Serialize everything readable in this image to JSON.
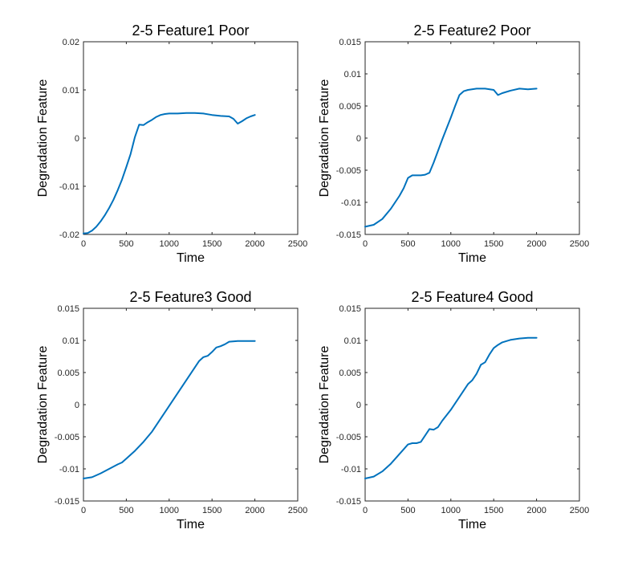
{
  "chart_data": [
    {
      "type": "line",
      "title": "2-5 Feature1 Poor",
      "xlabel": "Time",
      "ylabel": "Degradation Feature",
      "xlim": [
        0,
        2500
      ],
      "ylim": [
        -0.02,
        0.02
      ],
      "xticks": [
        0,
        500,
        1000,
        1500,
        2000,
        2500
      ],
      "yticks": [
        -0.02,
        -0.01,
        0,
        0.01,
        0.02
      ],
      "xtick_labels": [
        "0",
        "500",
        "1000",
        "1500",
        "2000",
        "2500"
      ],
      "ytick_labels": [
        "-0.02",
        "-0.01",
        "0",
        "0.01",
        "0.02"
      ],
      "grid": false,
      "color": "#0072BD",
      "series": [
        {
          "x": [
            0,
            50,
            100,
            150,
            200,
            250,
            300,
            350,
            400,
            450,
            500,
            550,
            600,
            650,
            700,
            750,
            800,
            850,
            900,
            950,
            1000,
            1100,
            1200,
            1300,
            1400,
            1500,
            1600,
            1700,
            1750,
            1800,
            1850,
            1900,
            1950,
            2000
          ],
          "y": [
            -0.0198,
            -0.0197,
            -0.0192,
            -0.0184,
            -0.0173,
            -0.016,
            -0.0145,
            -0.0128,
            -0.0108,
            -0.0086,
            -0.006,
            -0.0033,
            0.0002,
            0.0028,
            0.0027,
            0.0033,
            0.0038,
            0.0044,
            0.0048,
            0.005,
            0.0051,
            0.0051,
            0.0052,
            0.0052,
            0.0051,
            0.0048,
            0.0046,
            0.0045,
            0.004,
            0.003,
            0.0035,
            0.0041,
            0.0045,
            0.0048
          ]
        }
      ]
    },
    {
      "type": "line",
      "title": "2-5 Feature2 Poor",
      "xlabel": "Time",
      "ylabel": "Degradation Feature",
      "xlim": [
        0,
        2500
      ],
      "ylim": [
        -0.015,
        0.015
      ],
      "xticks": [
        0,
        500,
        1000,
        1500,
        2000,
        2500
      ],
      "yticks": [
        -0.015,
        -0.01,
        -0.005,
        0,
        0.005,
        0.01,
        0.015
      ],
      "xtick_labels": [
        "0",
        "500",
        "1000",
        "1500",
        "2000",
        "2500"
      ],
      "ytick_labels": [
        "-0.015",
        "-0.01",
        "-0.005",
        "0",
        "0.005",
        "0.01",
        "0.015"
      ],
      "grid": false,
      "color": "#0072BD",
      "series": [
        {
          "x": [
            0,
            100,
            200,
            300,
            400,
            450,
            500,
            550,
            600,
            650,
            700,
            750,
            800,
            850,
            900,
            950,
            1000,
            1050,
            1100,
            1150,
            1200,
            1300,
            1400,
            1500,
            1550,
            1600,
            1700,
            1800,
            1900,
            2000
          ],
          "y": [
            -0.0138,
            -0.0135,
            -0.0126,
            -0.011,
            -0.009,
            -0.0078,
            -0.0062,
            -0.0058,
            -0.0058,
            -0.0058,
            -0.0057,
            -0.0054,
            -0.0038,
            -0.002,
            -0.0002,
            0.0015,
            0.0032,
            0.005,
            0.0067,
            0.0073,
            0.0075,
            0.0077,
            0.0077,
            0.0075,
            0.0067,
            0.007,
            0.0074,
            0.0077,
            0.0076,
            0.0077
          ]
        }
      ]
    },
    {
      "type": "line",
      "title": "2-5 Feature3 Good",
      "xlabel": "Time",
      "ylabel": "Degradation Feature",
      "xlim": [
        0,
        2500
      ],
      "ylim": [
        -0.015,
        0.015
      ],
      "xticks": [
        0,
        500,
        1000,
        1500,
        2000,
        2500
      ],
      "yticks": [
        -0.015,
        -0.01,
        -0.005,
        0,
        0.005,
        0.01,
        0.015
      ],
      "xtick_labels": [
        "0",
        "500",
        "1000",
        "1500",
        "2000",
        "2500"
      ],
      "ytick_labels": [
        "-0.015",
        "-0.01",
        "-0.005",
        "0",
        "0.005",
        "0.01",
        "0.015"
      ],
      "grid": false,
      "color": "#0072BD",
      "series": [
        {
          "x": [
            0,
            100,
            200,
            300,
            400,
            450,
            500,
            600,
            700,
            800,
            900,
            1000,
            1100,
            1200,
            1300,
            1350,
            1400,
            1450,
            1500,
            1550,
            1600,
            1650,
            1700,
            1800,
            1900,
            2000
          ],
          "y": [
            -0.0115,
            -0.0113,
            -0.0107,
            -0.01,
            -0.0093,
            -0.009,
            -0.0084,
            -0.0072,
            -0.0058,
            -0.0042,
            -0.0022,
            -0.0002,
            0.0018,
            0.0038,
            0.0058,
            0.0068,
            0.0074,
            0.0076,
            0.0082,
            0.0089,
            0.0091,
            0.0094,
            0.0098,
            0.0099,
            0.0099,
            0.0099
          ]
        }
      ]
    },
    {
      "type": "line",
      "title": "2-5 Feature4 Good",
      "xlabel": "Time",
      "ylabel": "Degradation Feature",
      "xlim": [
        0,
        2500
      ],
      "ylim": [
        -0.015,
        0.015
      ],
      "xticks": [
        0,
        500,
        1000,
        1500,
        2000,
        2500
      ],
      "yticks": [
        -0.015,
        -0.01,
        -0.005,
        0,
        0.005,
        0.01,
        0.015
      ],
      "xtick_labels": [
        "0",
        "500",
        "1000",
        "1500",
        "2000",
        "2500"
      ],
      "ytick_labels": [
        "-0.015",
        "-0.01",
        "-0.005",
        "0",
        "0.005",
        "0.01",
        "0.015"
      ],
      "grid": false,
      "color": "#0072BD",
      "series": [
        {
          "x": [
            0,
            100,
            200,
            300,
            400,
            500,
            550,
            600,
            650,
            700,
            750,
            800,
            850,
            900,
            1000,
            1100,
            1200,
            1250,
            1300,
            1350,
            1400,
            1450,
            1500,
            1550,
            1600,
            1700,
            1800,
            1900,
            2000
          ],
          "y": [
            -0.0115,
            -0.0112,
            -0.0104,
            -0.0092,
            -0.0077,
            -0.0062,
            -0.006,
            -0.006,
            -0.0058,
            -0.0048,
            -0.0038,
            -0.0039,
            -0.0035,
            -0.0025,
            -0.0008,
            0.0012,
            0.0032,
            0.0038,
            0.0048,
            0.0062,
            0.0066,
            0.0078,
            0.0088,
            0.0093,
            0.0097,
            0.0101,
            0.0103,
            0.0104,
            0.0104
          ]
        }
      ]
    }
  ]
}
